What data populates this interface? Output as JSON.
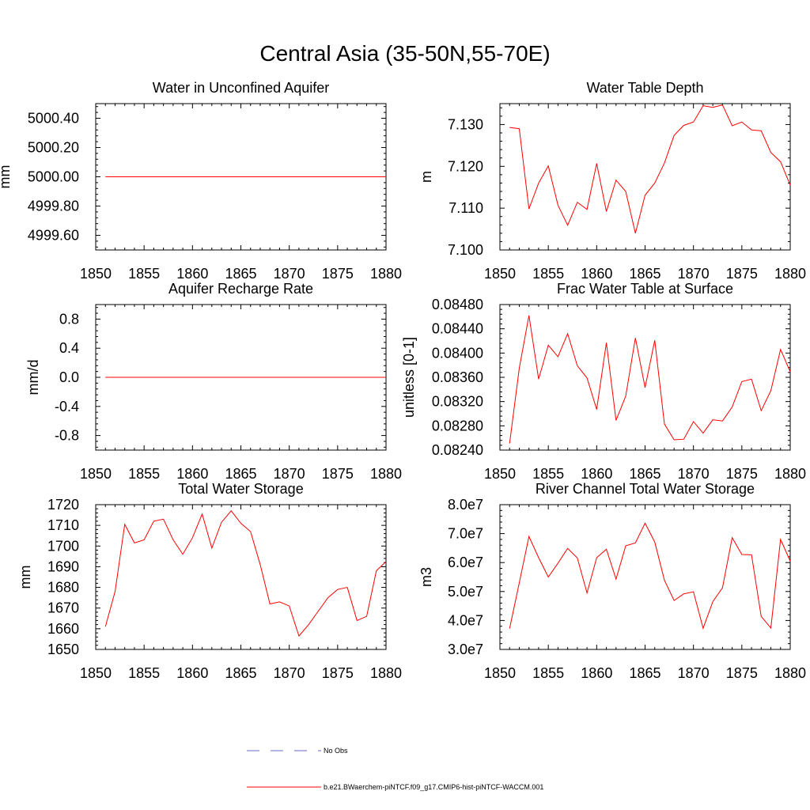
{
  "figure": {
    "title": "Central Asia (35-50N,55-70E)"
  },
  "legend": {
    "obs_label": "No Obs",
    "obs_color": "#6a6ac4",
    "model_label": "b.e21.BWaerchem-piNTCF.f09_g17.CMIP6-hist-piNTCF-WACCM.001",
    "model_color": "#ff0000"
  },
  "chart_data": [
    {
      "type": "line",
      "title": "Water in Unconfined Aquifer",
      "ylabel": "mm",
      "xlim": [
        1850,
        1880
      ],
      "ylim": [
        4999.5,
        5000.5
      ],
      "xticks": [
        1850,
        1855,
        1860,
        1865,
        1870,
        1875,
        1880
      ],
      "xtick_labels": [
        "1850",
        "1855",
        "1860",
        "1865",
        "1870",
        "1875",
        "1880"
      ],
      "yticks": [
        4999.6,
        4999.8,
        5000.0,
        5000.2,
        5000.4
      ],
      "ytick_labels": [
        "4999.60",
        "4999.80",
        "5000.00",
        "5000.20",
        "5000.40"
      ],
      "x": [
        1851,
        1852,
        1853,
        1854,
        1855,
        1856,
        1857,
        1858,
        1859,
        1860,
        1861,
        1862,
        1863,
        1864,
        1865,
        1866,
        1867,
        1868,
        1869,
        1870,
        1871,
        1872,
        1873,
        1874,
        1875,
        1876,
        1877,
        1878,
        1879,
        1880
      ],
      "series": [
        {
          "values": [
            5000,
            5000,
            5000,
            5000,
            5000,
            5000,
            5000,
            5000,
            5000,
            5000,
            5000,
            5000,
            5000,
            5000,
            5000,
            5000,
            5000,
            5000,
            5000,
            5000,
            5000,
            5000,
            5000,
            5000,
            5000,
            5000,
            5000,
            5000,
            5000,
            5000
          ],
          "color": "#ff0000"
        }
      ]
    },
    {
      "type": "line",
      "title": "Water Table Depth",
      "ylabel": "m",
      "xlim": [
        1850,
        1880
      ],
      "ylim": [
        7.1,
        7.135
      ],
      "xticks": [
        1850,
        1855,
        1860,
        1865,
        1870,
        1875,
        1880
      ],
      "xtick_labels": [
        "1850",
        "1855",
        "1860",
        "1865",
        "1870",
        "1875",
        "1880"
      ],
      "yticks": [
        7.1,
        7.11,
        7.12,
        7.13
      ],
      "ytick_labels": [
        "7.100",
        "7.110",
        "7.120",
        "7.130"
      ],
      "x": [
        1851,
        1852,
        1853,
        1854,
        1855,
        1856,
        1857,
        1858,
        1859,
        1860,
        1861,
        1862,
        1863,
        1864,
        1865,
        1866,
        1867,
        1868,
        1869,
        1870,
        1871,
        1872,
        1873,
        1874,
        1875,
        1876,
        1877,
        1878,
        1879,
        1880
      ],
      "series": [
        {
          "values": [
            7.1293,
            7.129,
            7.1098,
            7.116,
            7.1201,
            7.1107,
            7.1059,
            7.1114,
            7.1097,
            7.1207,
            7.1092,
            7.1167,
            7.114,
            7.104,
            7.1131,
            7.116,
            7.1208,
            7.1274,
            7.1298,
            7.1306,
            7.1345,
            7.1341,
            7.1347,
            7.1297,
            7.1306,
            7.1287,
            7.1285,
            7.1233,
            7.1211,
            7.1155
          ],
          "color": "#ff0000"
        }
      ]
    },
    {
      "type": "line",
      "title": "Aquifer Recharge Rate",
      "ylabel": "mm/d",
      "xlim": [
        1850,
        1880
      ],
      "ylim": [
        -1.0,
        1.0
      ],
      "xticks": [
        1850,
        1855,
        1860,
        1865,
        1870,
        1875,
        1880
      ],
      "xtick_labels": [
        "1850",
        "1855",
        "1860",
        "1865",
        "1870",
        "1875",
        "1880"
      ],
      "yticks": [
        -0.8,
        -0.4,
        0.0,
        0.4,
        0.8
      ],
      "ytick_labels": [
        "-0.8",
        "-0.4",
        "0.0",
        "0.4",
        "0.8"
      ],
      "x": [
        1851,
        1852,
        1853,
        1854,
        1855,
        1856,
        1857,
        1858,
        1859,
        1860,
        1861,
        1862,
        1863,
        1864,
        1865,
        1866,
        1867,
        1868,
        1869,
        1870,
        1871,
        1872,
        1873,
        1874,
        1875,
        1876,
        1877,
        1878,
        1879,
        1880
      ],
      "series": [
        {
          "values": [
            0,
            0,
            0,
            0,
            0,
            0,
            0,
            0,
            0,
            0,
            0,
            0,
            0,
            0,
            0,
            0,
            0,
            0,
            0,
            0,
            0,
            0,
            0,
            0,
            0,
            0,
            0,
            0,
            0,
            0
          ],
          "color": "#ff0000"
        }
      ]
    },
    {
      "type": "line",
      "title": "Frac Water Table at Surface",
      "ylabel": "unitless [0-1]",
      "xlim": [
        1850,
        1880
      ],
      "ylim": [
        0.0824,
        0.0848
      ],
      "xticks": [
        1850,
        1855,
        1860,
        1865,
        1870,
        1875,
        1880
      ],
      "xtick_labels": [
        "1850",
        "1855",
        "1860",
        "1865",
        "1870",
        "1875",
        "1880"
      ],
      "yticks": [
        0.0824,
        0.0828,
        0.0832,
        0.0836,
        0.084,
        0.0844,
        0.0848
      ],
      "ytick_labels": [
        "0.08240",
        "0.08280",
        "0.08320",
        "0.08360",
        "0.08400",
        "0.08440",
        "0.08480"
      ],
      "x": [
        1851,
        1852,
        1853,
        1854,
        1855,
        1856,
        1857,
        1858,
        1859,
        1860,
        1861,
        1862,
        1863,
        1864,
        1865,
        1866,
        1867,
        1868,
        1869,
        1870,
        1871,
        1872,
        1873,
        1874,
        1875,
        1876,
        1877,
        1878,
        1879,
        1880
      ],
      "series": [
        {
          "values": [
            0.08251,
            0.08375,
            0.08462,
            0.08357,
            0.08413,
            0.08394,
            0.08432,
            0.08379,
            0.08359,
            0.08307,
            0.08417,
            0.08289,
            0.08329,
            0.08425,
            0.08343,
            0.08421,
            0.08283,
            0.08257,
            0.08258,
            0.08287,
            0.08268,
            0.0829,
            0.08288,
            0.08311,
            0.08353,
            0.08357,
            0.08305,
            0.08338,
            0.08406,
            0.08369
          ],
          "color": "#ff0000"
        }
      ]
    },
    {
      "type": "line",
      "title": "Total Water Storage",
      "ylabel": "mm",
      "xlim": [
        1850,
        1880
      ],
      "ylim": [
        1650,
        1720
      ],
      "xticks": [
        1850,
        1855,
        1860,
        1865,
        1870,
        1875,
        1880
      ],
      "xtick_labels": [
        "1850",
        "1855",
        "1860",
        "1865",
        "1870",
        "1875",
        "1880"
      ],
      "yticks": [
        1650,
        1660,
        1670,
        1680,
        1690,
        1700,
        1710,
        1720
      ],
      "ytick_labels": [
        "1650",
        "1660",
        "1670",
        "1680",
        "1690",
        "1700",
        "1710",
        "1720"
      ],
      "x": [
        1851,
        1852,
        1853,
        1854,
        1855,
        1856,
        1857,
        1858,
        1859,
        1860,
        1861,
        1862,
        1863,
        1864,
        1865,
        1866,
        1867,
        1868,
        1869,
        1870,
        1871,
        1872,
        1873,
        1874,
        1875,
        1876,
        1877,
        1878,
        1879,
        1880
      ],
      "series": [
        {
          "values": [
            1661,
            1678,
            1710.5,
            1701.5,
            1703,
            1712,
            1713,
            1703,
            1696,
            1704,
            1715.5,
            1699,
            1711.5,
            1717,
            1711,
            1707,
            1691,
            1672,
            1673,
            1671,
            1656.5,
            1662,
            1668.5,
            1675,
            1679,
            1680,
            1664,
            1666,
            1688,
            1692.5
          ],
          "color": "#ff0000"
        }
      ]
    },
    {
      "type": "line",
      "title": "River Channel Total Water Storage",
      "ylabel": "m3",
      "xlim": [
        1850,
        1880
      ],
      "ylim": [
        30000000,
        80000000
      ],
      "xticks": [
        1850,
        1855,
        1860,
        1865,
        1870,
        1875,
        1880
      ],
      "xtick_labels": [
        "1850",
        "1855",
        "1860",
        "1865",
        "1870",
        "1875",
        "1880"
      ],
      "yticks": [
        30000000,
        40000000,
        50000000,
        60000000,
        70000000,
        80000000
      ],
      "ytick_labels": [
        "3.0e7",
        "4.0e7",
        "5.0e7",
        "6.0e7",
        "7.0e7",
        "8.0e7"
      ],
      "x": [
        1851,
        1852,
        1853,
        1854,
        1855,
        1856,
        1857,
        1858,
        1859,
        1860,
        1861,
        1862,
        1863,
        1864,
        1865,
        1866,
        1867,
        1868,
        1869,
        1870,
        1871,
        1872,
        1873,
        1874,
        1875,
        1876,
        1877,
        1878,
        1879,
        1880
      ],
      "series": [
        {
          "values": [
            37200000,
            53000000,
            69000000,
            61700000,
            55000000,
            59800000,
            64900000,
            61600000,
            49500000,
            61700000,
            64600000,
            54300000,
            65800000,
            66800000,
            73600000,
            67100000,
            53900000,
            46900000,
            49200000,
            49900000,
            37300000,
            46500000,
            51300000,
            68600000,
            62800000,
            62700000,
            41400000,
            37400000,
            68000000,
            60500000
          ],
          "color": "#ff0000"
        }
      ]
    }
  ]
}
